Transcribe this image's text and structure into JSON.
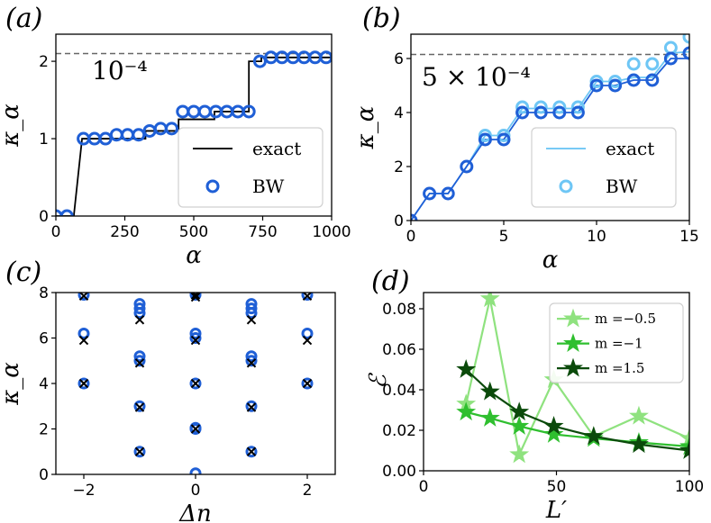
{
  "chart_data": [
    {
      "id": "a",
      "type": "line",
      "panel_label": "(a)",
      "xlabel": "α",
      "ylabel": "κ_α",
      "xlim": [
        0,
        1000
      ],
      "ylim": [
        0,
        2.35
      ],
      "xticks": [
        0,
        250,
        500,
        750,
        1000
      ],
      "yticks": [
        0,
        1,
        2
      ],
      "annotation": "10⁻⁴",
      "reference_line": 2.1,
      "legend_position": "lower-right",
      "series": [
        {
          "name": "exact",
          "kind": "step",
          "color": "#000000",
          "x": [
            0,
            65,
            65,
            95,
            95,
            325,
            325,
            445,
            445,
            575,
            575,
            700,
            700,
            745,
            745,
            1000
          ],
          "y": [
            0,
            0,
            0,
            1,
            1,
            1,
            1.1,
            1.1,
            1.25,
            1.25,
            1.35,
            1.35,
            2.0,
            2.0,
            2.05,
            2.05
          ]
        },
        {
          "name": "BW",
          "kind": "circles",
          "color": "#1f5fd6",
          "x": [
            0,
            40,
            100,
            140,
            180,
            220,
            260,
            300,
            340,
            380,
            420,
            460,
            500,
            540,
            580,
            620,
            660,
            700,
            740,
            780,
            820,
            860,
            900,
            940,
            980
          ],
          "y": [
            0,
            0,
            1.0,
            1.0,
            1.0,
            1.05,
            1.05,
            1.05,
            1.1,
            1.13,
            1.13,
            1.35,
            1.35,
            1.35,
            1.35,
            1.35,
            1.35,
            1.35,
            2.0,
            2.05,
            2.05,
            2.05,
            2.05,
            2.05,
            2.05
          ]
        }
      ]
    },
    {
      "id": "b",
      "type": "line",
      "panel_label": "(b)",
      "xlabel": "α",
      "ylabel": "κ_α",
      "xlim": [
        0,
        15
      ],
      "ylim": [
        0,
        6.9
      ],
      "xticks": [
        0,
        5,
        10,
        15
      ],
      "yticks": [
        0,
        2,
        4,
        6
      ],
      "annotation": "5 × 10⁻⁴",
      "reference_line": 6.15,
      "legend_position": "lower-right",
      "series": [
        {
          "name": "exact",
          "kind": "line",
          "color": "#6ec6f5",
          "x": [
            0,
            1,
            2,
            3,
            4,
            5,
            6,
            7,
            8,
            9,
            10,
            11,
            12,
            13,
            14,
            15
          ],
          "y": [
            0,
            1,
            1,
            2,
            3.15,
            3.15,
            4.15,
            4.15,
            4.15,
            4.15,
            5.15,
            5.15,
            5.3,
            5.3,
            6.2,
            6.25
          ]
        },
        {
          "name": "",
          "kind": "line",
          "color": "#1f5fd6",
          "x": [
            0,
            1,
            2,
            3,
            4,
            5,
            6,
            7,
            8,
            9,
            10,
            11,
            12,
            13,
            14,
            15
          ],
          "y": [
            0,
            1,
            1,
            2,
            3.0,
            3.0,
            4.0,
            4.0,
            4.0,
            4.0,
            5.0,
            5.0,
            5.2,
            5.2,
            6.0,
            6.0
          ]
        },
        {
          "name": "BW",
          "kind": "circles",
          "color": "#6ec6f5",
          "x": [
            4,
            5,
            6,
            7,
            8,
            9,
            10,
            11,
            12,
            13,
            14,
            15
          ],
          "y": [
            3.15,
            3.15,
            4.2,
            4.2,
            4.2,
            4.2,
            5.15,
            5.15,
            5.8,
            5.8,
            6.4,
            6.8
          ]
        },
        {
          "name": "",
          "kind": "circles",
          "color": "#1f5fd6",
          "x": [
            0,
            1,
            2,
            3,
            4,
            5,
            6,
            7,
            8,
            9,
            10,
            11,
            12,
            13,
            14,
            15
          ],
          "y": [
            0,
            1,
            1,
            2,
            3.0,
            3.0,
            4.0,
            4.0,
            4.0,
            4.0,
            5.0,
            5.0,
            5.2,
            5.2,
            6.0,
            6.2
          ]
        }
      ]
    },
    {
      "id": "c",
      "type": "scatter",
      "panel_label": "(c)",
      "xlabel": "Δn",
      "ylabel": "κ_α",
      "xlim": [
        -2.5,
        2.5
      ],
      "ylim": [
        0,
        8
      ],
      "xticks": [
        -2,
        0,
        2
      ],
      "yticks": [
        0,
        2,
        4,
        6,
        8
      ],
      "series": [
        {
          "name": "",
          "kind": "circles",
          "color": "#1f5fd6",
          "x": [
            -2,
            -2,
            -2,
            -1,
            -1,
            -1,
            -1,
            -1,
            -1,
            -1,
            0,
            0,
            0,
            0,
            0,
            0,
            0,
            0,
            1,
            1,
            1,
            1,
            1,
            1,
            1,
            2,
            2,
            2
          ],
          "y": [
            4.0,
            6.2,
            7.9,
            1.0,
            3.0,
            5.0,
            5.2,
            7.1,
            7.3,
            7.5,
            0.05,
            2.0,
            4.0,
            6.0,
            6.2,
            7.9,
            8.0,
            2.05,
            1.0,
            3.0,
            5.0,
            5.2,
            7.1,
            7.3,
            7.5,
            4.0,
            6.2,
            7.9
          ]
        },
        {
          "name": "",
          "kind": "crosses",
          "color": "#000000",
          "x": [
            -2,
            -2,
            -2,
            -1,
            -1,
            -1,
            -1,
            0,
            0,
            0,
            0,
            0,
            1,
            1,
            1,
            1,
            2,
            2,
            2
          ],
          "y": [
            4.0,
            5.9,
            7.85,
            1.0,
            2.95,
            4.9,
            6.8,
            2.0,
            4.0,
            5.9,
            7.8,
            7.9,
            1.0,
            2.95,
            4.9,
            6.8,
            4.0,
            5.9,
            7.85
          ]
        }
      ]
    },
    {
      "id": "d",
      "type": "line",
      "panel_label": "(d)",
      "xlabel": "L′",
      "ylabel": "ℰ",
      "xlim": [
        0,
        100
      ],
      "ylim": [
        0,
        0.088
      ],
      "xticks": [
        0,
        50,
        100
      ],
      "yticks": [
        0.0,
        0.02,
        0.04,
        0.06,
        0.08
      ],
      "ytick_labels": [
        "0.00",
        "0.02",
        "0.04",
        "0.06",
        "0.08"
      ],
      "legend_position": "top-right",
      "series": [
        {
          "name": "m =−0.5",
          "kind": "star-line",
          "color": "#8fe27f",
          "x": [
            16,
            25,
            36,
            49,
            64,
            81,
            100
          ],
          "y": [
            0.033,
            0.085,
            0.008,
            0.045,
            0.017,
            0.027,
            0.016
          ]
        },
        {
          "name": "m =−1",
          "kind": "star-line",
          "color": "#2fbf2f",
          "x": [
            16,
            25,
            36,
            49,
            64,
            81,
            100
          ],
          "y": [
            0.029,
            0.026,
            0.022,
            0.018,
            0.016,
            0.014,
            0.012
          ]
        },
        {
          "name": "m =1.5",
          "kind": "star-line",
          "color": "#0b4a0b",
          "x": [
            16,
            25,
            36,
            49,
            64,
            81,
            100
          ],
          "y": [
            0.05,
            0.039,
            0.029,
            0.022,
            0.017,
            0.013,
            0.01
          ]
        }
      ]
    }
  ]
}
